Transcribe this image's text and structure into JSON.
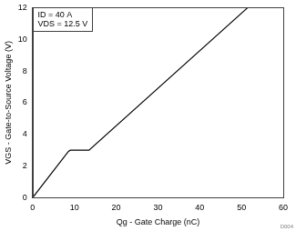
{
  "chart_data": {
    "type": "line",
    "x_label": "Qg - Gate Charge (nC)",
    "y_label": "VGS - Gate-to-Source Voltage (V)",
    "annotations": [
      "ID = 40 A",
      "VDS = 12.5 V"
    ],
    "footnote": "D004",
    "x": [
      0,
      8.5,
      9,
      13.5,
      51.5
    ],
    "values": [
      0,
      2.9,
      3.0,
      3.0,
      12
    ],
    "color": "#000000",
    "line_style": "solid",
    "xlim": [
      0,
      60
    ],
    "xticks": [
      0,
      10,
      20,
      30,
      40,
      50,
      60
    ],
    "ylim": [
      0,
      12
    ],
    "yticks": [
      0,
      2,
      4,
      6,
      8,
      10,
      12
    ],
    "grid": false
  }
}
